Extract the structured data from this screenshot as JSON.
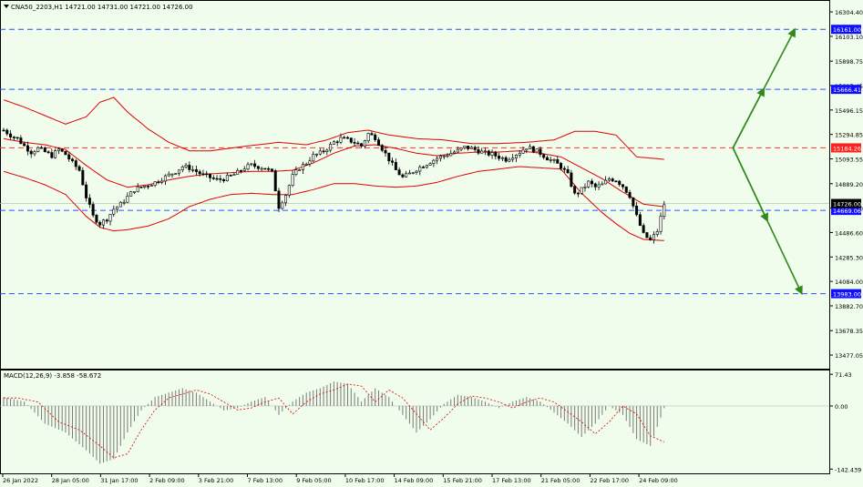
{
  "header": {
    "symbol_info": "CNA50_2203,H1  14721.00 14731.00 14721.00 14726.00",
    "macd_info": "MACD(12,26,9) -3.858 -58.672"
  },
  "colors": {
    "background": "#f0fdec",
    "candle": "#000000",
    "bollinger": "#e00000",
    "hline_blue": "#3050ff",
    "hline_red": "#ff3030",
    "arrow": "#2f8a1a",
    "macd_hist": "#7a7a7a",
    "macd_signal": "#e00000",
    "label_blue_bg": "#1010ff",
    "label_red_bg": "#ff2020",
    "label_current_bg": "#000000"
  },
  "chart_data": {
    "type": "candlestick",
    "symbol": "CNA50_2203",
    "timeframe": "H1",
    "ohlc_current": {
      "open": 14721.0,
      "high": 14731.0,
      "low": 14721.0,
      "close": 14726.0
    },
    "price_axis": {
      "ylim": [
        13380,
        16380
      ],
      "ticks": [
        "16304.40",
        "16103.10",
        "15898.75",
        "15697.45",
        "15496.15",
        "15294.85",
        "15093.55",
        "14889.20",
        "14687.90",
        "14486.60",
        "14285.30",
        "14084.00",
        "13882.70",
        "13678.35",
        "13477.05"
      ]
    },
    "time_axis": {
      "labels": [
        "26 Jan 2022",
        "28 Jan 05:00",
        "31 Jan 17:00",
        "2 Feb 09:00",
        "3 Feb 21:00",
        "7 Feb 13:00",
        "9 Feb 05:00",
        "10 Feb 17:00",
        "14 Feb 09:00",
        "15 Feb 21:00",
        "17 Feb 13:00",
        "21 Feb 05:00",
        "22 Feb 17:00",
        "24 Feb 09:00"
      ]
    },
    "price_path": [
      [
        0,
        15330
      ],
      [
        1,
        15290
      ],
      [
        2,
        15260
      ],
      [
        3,
        15200
      ],
      [
        4,
        15150
      ],
      [
        5,
        15180
      ],
      [
        6,
        15150
      ],
      [
        7,
        15120
      ],
      [
        8,
        15170
      ],
      [
        9,
        15130
      ],
      [
        10,
        15060
      ],
      [
        11,
        15000
      ],
      [
        12,
        14780
      ],
      [
        13,
        14620
      ],
      [
        14,
        14560
      ],
      [
        15,
        14600
      ],
      [
        16,
        14680
      ],
      [
        17,
        14720
      ],
      [
        18,
        14780
      ],
      [
        19,
        14840
      ],
      [
        20,
        14860
      ],
      [
        21,
        14880
      ],
      [
        22,
        14900
      ],
      [
        23,
        14930
      ],
      [
        24,
        14960
      ],
      [
        25,
        14990
      ],
      [
        26,
        15030
      ],
      [
        27,
        15020
      ],
      [
        28,
        14990
      ],
      [
        29,
        14960
      ],
      [
        30,
        14940
      ],
      [
        31,
        14920
      ],
      [
        32,
        14930
      ],
      [
        33,
        14950
      ],
      [
        34,
        14980
      ],
      [
        35,
        15020
      ],
      [
        36,
        15040
      ],
      [
        37,
        15030
      ],
      [
        38,
        15020
      ],
      [
        39,
        14980
      ],
      [
        40,
        14700
      ],
      [
        41,
        14800
      ],
      [
        42,
        14950
      ],
      [
        43,
        15020
      ],
      [
        44,
        15060
      ],
      [
        45,
        15120
      ],
      [
        46,
        15140
      ],
      [
        47,
        15180
      ],
      [
        48,
        15230
      ],
      [
        49,
        15260
      ],
      [
        50,
        15250
      ],
      [
        51,
        15230
      ],
      [
        52,
        15200
      ],
      [
        53,
        15300
      ],
      [
        54,
        15270
      ],
      [
        55,
        15180
      ],
      [
        56,
        15090
      ],
      [
        57,
        15000
      ],
      [
        58,
        14940
      ],
      [
        59,
        14970
      ],
      [
        60,
        15010
      ],
      [
        61,
        15040
      ],
      [
        62,
        15070
      ],
      [
        63,
        15100
      ],
      [
        64,
        15120
      ],
      [
        65,
        15140
      ],
      [
        66,
        15160
      ],
      [
        67,
        15190
      ],
      [
        68,
        15180
      ],
      [
        69,
        15160
      ],
      [
        70,
        15140
      ],
      [
        71,
        15130
      ],
      [
        72,
        15110
      ],
      [
        73,
        15090
      ],
      [
        74,
        15120
      ],
      [
        75,
        15150
      ],
      [
        76,
        15190
      ],
      [
        77,
        15170
      ],
      [
        78,
        15140
      ],
      [
        79,
        15100
      ],
      [
        80,
        15070
      ],
      [
        81,
        15030
      ],
      [
        82,
        14960
      ],
      [
        83,
        14800
      ],
      [
        84,
        14840
      ],
      [
        85,
        14900
      ],
      [
        86,
        14860
      ],
      [
        87,
        14880
      ],
      [
        88,
        14930
      ],
      [
        89,
        14920
      ],
      [
        90,
        14870
      ],
      [
        91,
        14790
      ],
      [
        92,
        14620
      ],
      [
        93,
        14470
      ],
      [
        94,
        14420
      ],
      [
        95,
        14500
      ],
      [
        96,
        14720
      ]
    ],
    "bollinger_upper": [
      [
        0,
        15580
      ],
      [
        3,
        15520
      ],
      [
        6,
        15450
      ],
      [
        9,
        15380
      ],
      [
        12,
        15440
      ],
      [
        14,
        15560
      ],
      [
        16,
        15600
      ],
      [
        18,
        15480
      ],
      [
        21,
        15340
      ],
      [
        24,
        15230
      ],
      [
        27,
        15160
      ],
      [
        30,
        15160
      ],
      [
        34,
        15190
      ],
      [
        37,
        15210
      ],
      [
        40,
        15230
      ],
      [
        44,
        15210
      ],
      [
        47,
        15250
      ],
      [
        50,
        15310
      ],
      [
        53,
        15330
      ],
      [
        56,
        15290
      ],
      [
        60,
        15260
      ],
      [
        64,
        15250
      ],
      [
        68,
        15220
      ],
      [
        72,
        15220
      ],
      [
        76,
        15230
      ],
      [
        80,
        15250
      ],
      [
        83,
        15320
      ],
      [
        86,
        15320
      ],
      [
        89,
        15290
      ],
      [
        92,
        15110
      ],
      [
        94,
        15100
      ],
      [
        96,
        15090
      ]
    ],
    "bollinger_middle": [
      [
        0,
        15260
      ],
      [
        3,
        15230
      ],
      [
        6,
        15210
      ],
      [
        9,
        15170
      ],
      [
        12,
        15040
      ],
      [
        15,
        14920
      ],
      [
        18,
        14860
      ],
      [
        21,
        14880
      ],
      [
        24,
        14920
      ],
      [
        27,
        14950
      ],
      [
        30,
        14970
      ],
      [
        33,
        14980
      ],
      [
        36,
        14990
      ],
      [
        39,
        14990
      ],
      [
        42,
        15000
      ],
      [
        45,
        15060
      ],
      [
        48,
        15140
      ],
      [
        51,
        15200
      ],
      [
        54,
        15210
      ],
      [
        57,
        15180
      ],
      [
        60,
        15140
      ],
      [
        63,
        15120
      ],
      [
        66,
        15140
      ],
      [
        69,
        15150
      ],
      [
        72,
        15150
      ],
      [
        75,
        15160
      ],
      [
        78,
        15140
      ],
      [
        81,
        15110
      ],
      [
        84,
        15020
      ],
      [
        87,
        14930
      ],
      [
        90,
        14820
      ],
      [
        93,
        14720
      ],
      [
        96,
        14700
      ]
    ],
    "bollinger_lower": [
      [
        0,
        14990
      ],
      [
        3,
        14940
      ],
      [
        6,
        14880
      ],
      [
        9,
        14800
      ],
      [
        12,
        14620
      ],
      [
        14,
        14530
      ],
      [
        16,
        14500
      ],
      [
        18,
        14510
      ],
      [
        21,
        14540
      ],
      [
        24,
        14600
      ],
      [
        27,
        14700
      ],
      [
        30,
        14760
      ],
      [
        33,
        14800
      ],
      [
        36,
        14810
      ],
      [
        39,
        14800
      ],
      [
        42,
        14800
      ],
      [
        45,
        14840
      ],
      [
        48,
        14890
      ],
      [
        51,
        14890
      ],
      [
        54,
        14870
      ],
      [
        57,
        14860
      ],
      [
        60,
        14870
      ],
      [
        63,
        14900
      ],
      [
        66,
        14950
      ],
      [
        69,
        14990
      ],
      [
        72,
        15010
      ],
      [
        75,
        15030
      ],
      [
        78,
        15020
      ],
      [
        81,
        15010
      ],
      [
        84,
        14810
      ],
      [
        87,
        14650
      ],
      [
        89,
        14560
      ],
      [
        91,
        14480
      ],
      [
        93,
        14430
      ],
      [
        96,
        14420
      ]
    ],
    "horizontal_lines": [
      {
        "price": "16161.00",
        "style": "dashed",
        "color": "blue",
        "label_bg": "blue"
      },
      {
        "price": "15666.41",
        "style": "dashed",
        "color": "blue",
        "label_bg": "blue"
      },
      {
        "price": "15184.26",
        "style": "dashed",
        "color": "red",
        "label_bg": "red"
      },
      {
        "price": "14669.06",
        "style": "dashed",
        "color": "blue",
        "label_bg": "blue"
      },
      {
        "price": "13983.00",
        "style": "dashed",
        "color": "blue",
        "label_bg": "blue"
      }
    ],
    "current_price_label": "14726.00",
    "projection_arrows": [
      {
        "from": [
          106,
          15184
        ],
        "to": [
          115,
          16161
        ],
        "direction": "up"
      },
      {
        "from": [
          106,
          15184
        ],
        "to": [
          116,
          13983
        ],
        "direction": "down"
      }
    ],
    "macd": {
      "params": "(12,26,9)",
      "value": -3.858,
      "signal": -58.672,
      "ylim": [
        -150,
        78
      ],
      "ticks": [
        "71.43",
        "0.00",
        "-142.439"
      ],
      "histogram": [
        [
          0,
          20
        ],
        [
          3,
          10
        ],
        [
          6,
          -40
        ],
        [
          9,
          -60
        ],
        [
          12,
          -100
        ],
        [
          14,
          -130
        ],
        [
          16,
          -120
        ],
        [
          18,
          -60
        ],
        [
          20,
          -10
        ],
        [
          22,
          20
        ],
        [
          24,
          30
        ],
        [
          26,
          40
        ],
        [
          28,
          30
        ],
        [
          30,
          10
        ],
        [
          32,
          -10
        ],
        [
          34,
          -5
        ],
        [
          36,
          10
        ],
        [
          38,
          20
        ],
        [
          40,
          -20
        ],
        [
          42,
          10
        ],
        [
          44,
          30
        ],
        [
          46,
          40
        ],
        [
          48,
          55
        ],
        [
          50,
          50
        ],
        [
          52,
          10
        ],
        [
          54,
          40
        ],
        [
          56,
          20
        ],
        [
          58,
          -20
        ],
        [
          60,
          -60
        ],
        [
          62,
          -30
        ],
        [
          64,
          5
        ],
        [
          66,
          25
        ],
        [
          68,
          20
        ],
        [
          70,
          10
        ],
        [
          72,
          -5
        ],
        [
          74,
          10
        ],
        [
          76,
          20
        ],
        [
          78,
          10
        ],
        [
          80,
          -15
        ],
        [
          82,
          -40
        ],
        [
          84,
          -70
        ],
        [
          86,
          -40
        ],
        [
          88,
          0
        ],
        [
          90,
          -20
        ],
        [
          92,
          -75
        ],
        [
          94,
          -90
        ],
        [
          96,
          -5
        ]
      ]
    }
  }
}
